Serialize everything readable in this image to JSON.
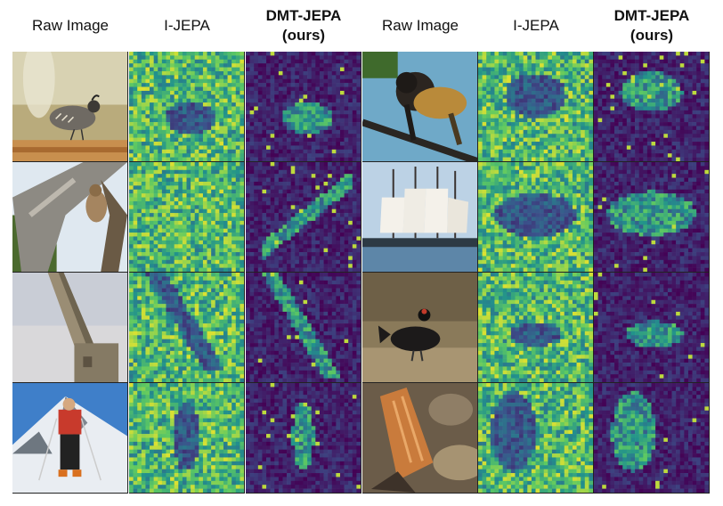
{
  "headers": {
    "raw_left": "Raw Image",
    "ijepa_left": "I-JEPA",
    "dmt_left_line1": "DMT-JEPA",
    "dmt_left_line2": "(ours)",
    "raw_right": "Raw Image",
    "ijepa_right": "I-JEPA",
    "dmt_right_line1": "DMT-JEPA",
    "dmt_right_line2": "(ours)"
  },
  "rows": [
    {
      "left": {
        "subject": "quail on wooden fence",
        "ijepa": "ijepa-attention-map",
        "dmt": "dmt-jepa-attention-map"
      },
      "right": {
        "subject": "monkey on branch",
        "ijepa": "ijepa-attention-map",
        "dmt": "dmt-jepa-attention-map"
      }
    },
    {
      "left": {
        "subject": "squirrel on tree",
        "ijepa": "ijepa-attention-map",
        "dmt": "dmt-jepa-attention-map"
      },
      "right": {
        "subject": "tall sailing ship",
        "ijepa": "ijepa-attention-map",
        "dmt": "dmt-jepa-attention-map"
      }
    },
    {
      "left": {
        "subject": "obelisk",
        "ijepa": "ijepa-attention-map",
        "dmt": "dmt-jepa-attention-map"
      },
      "right": {
        "subject": "black grouse",
        "ijepa": "ijepa-attention-map",
        "dmt": "dmt-jepa-attention-map"
      }
    },
    {
      "left": {
        "subject": "skier on snowy mountain",
        "ijepa": "ijepa-attention-map",
        "dmt": "dmt-jepa-attention-map"
      },
      "right": {
        "subject": "fungus among leaves",
        "ijepa": "ijepa-attention-map",
        "dmt": "dmt-jepa-attention-map"
      }
    }
  ],
  "colors": {
    "viridis_dark": "#440154",
    "viridis_mid": "#21918c",
    "viridis_light": "#5ec962",
    "viridis_bright": "#fde725"
  }
}
